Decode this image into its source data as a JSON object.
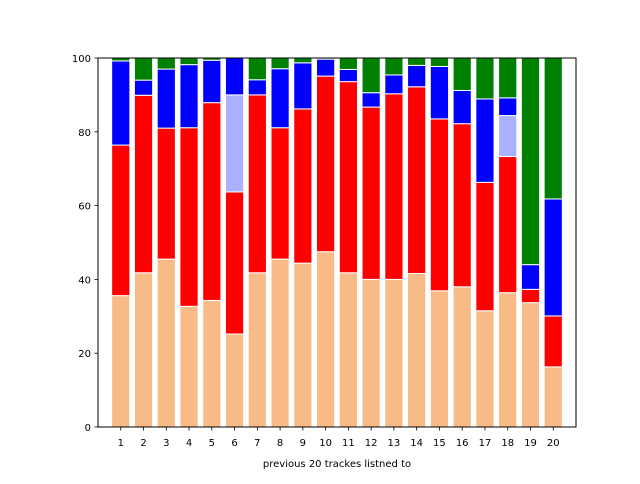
{
  "chart_data": {
    "type": "bar",
    "stacked": true,
    "title": "",
    "xlabel": "previous 20 trackes listned to",
    "ylabel": "",
    "ylim": [
      0,
      100
    ],
    "yticks": [
      0,
      20,
      40,
      60,
      80,
      100
    ],
    "categories": [
      "1",
      "2",
      "3",
      "4",
      "5",
      "6",
      "7",
      "8",
      "9",
      "10",
      "11",
      "12",
      "13",
      "14",
      "15",
      "16",
      "17",
      "18",
      "19",
      "20"
    ],
    "grid": false,
    "legend": "none",
    "series": [
      {
        "color": "#f8bb87",
        "values": [
          35.6,
          41.8,
          45.5,
          32.7,
          34.3,
          25.2,
          41.8,
          45.5,
          44.4,
          47.5,
          41.8,
          40.0,
          40.0,
          41.6,
          36.9,
          38.0,
          31.5,
          36.4,
          33.7,
          16.3
        ]
      },
      {
        "color": "#ff0000",
        "values": [
          40.8,
          48.1,
          35.5,
          48.4,
          53.6,
          38.5,
          48.2,
          35.6,
          41.8,
          47.6,
          51.8,
          46.7,
          50.3,
          50.6,
          46.6,
          44.2,
          34.8,
          36.9,
          3.6,
          13.8
        ]
      },
      {
        "color": "#aab2ff",
        "values": [
          0,
          0,
          0,
          0,
          0,
          26.3,
          0,
          0,
          0,
          0,
          0,
          0,
          0,
          0,
          0,
          0,
          0,
          11.1,
          0,
          0
        ]
      },
      {
        "color": "#0000ff",
        "values": [
          22.8,
          4.1,
          16.0,
          17.1,
          11.5,
          10.0,
          4.1,
          16.0,
          12.5,
          4.6,
          3.3,
          3.9,
          5.1,
          5.8,
          14.2,
          9.0,
          22.6,
          4.8,
          6.7,
          31.7
        ]
      },
      {
        "color": "#008000",
        "values": [
          0.8,
          6.0,
          3.0,
          1.8,
          0.6,
          0,
          5.9,
          2.9,
          1.3,
          0.3,
          3.1,
          9.4,
          4.6,
          2.0,
          2.3,
          8.8,
          11.1,
          10.8,
          56.0,
          38.2
        ]
      }
    ],
    "bar_edge_color": "#ffffff",
    "axis_color": "#000000"
  }
}
